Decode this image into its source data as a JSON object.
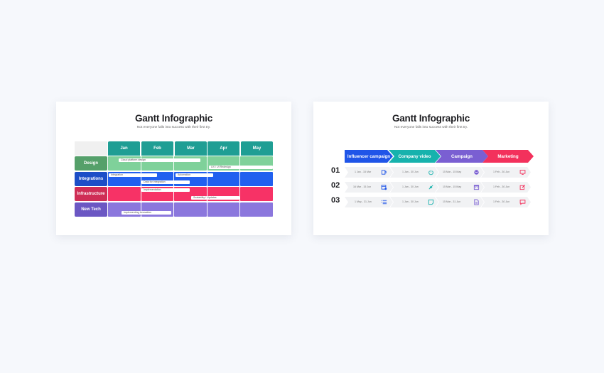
{
  "slide1": {
    "title": "Gantt Infographic",
    "subtitle": "Not everyone falls into success with their first try.",
    "months": [
      "Jan",
      "Feb",
      "Mar",
      "Apr",
      "May"
    ],
    "rows": [
      {
        "label": "Design",
        "label_color": "#55a06a",
        "band_color": "#7fd19a"
      },
      {
        "label": "Integrations",
        "label_color": "#1c4ec7",
        "band_color": "#2160ef"
      },
      {
        "label": "Infrastructure",
        "label_color": "#cf2d55",
        "band_color": "#f73266"
      },
      {
        "label": "New Tech",
        "label_color": "#6b57c3",
        "band_color": "#8b77dd"
      }
    ],
    "tasks": [
      "Cloud platform design",
      "UX / UI Redesign",
      "Integration",
      "Automation",
      "Data for integration",
      "Implementation",
      "Scalability / Updates",
      "Implementing Innovation"
    ]
  },
  "slide2": {
    "title": "Gantt Infographic",
    "subtitle": "Not everyone falls into success with their first try.",
    "phases": [
      {
        "label": "Influencer campaign",
        "color": "#1f55e8"
      },
      {
        "label": "Company video",
        "color": "#17b2ad"
      },
      {
        "label": "Campaign",
        "color": "#7a5fd2"
      },
      {
        "label": "Marketing",
        "color": "#f3315c"
      }
    ],
    "rows": [
      {
        "num": "01",
        "cells": [
          {
            "range": "1 Jan - 15 Mar",
            "icon": "mug-icon"
          },
          {
            "range": "1 Jan - 30 Jun",
            "icon": "power-icon"
          },
          {
            "range": "15 Mar - 15 May",
            "icon": "globe-icon"
          },
          {
            "range": "1 Feb - 30 Jun",
            "icon": "monitor-icon"
          }
        ]
      },
      {
        "num": "02",
        "cells": [
          {
            "range": "16 Mar - 15 Jun",
            "icon": "calendar-gear-icon"
          },
          {
            "range": "1 Jan - 30 Jun",
            "icon": "plug-icon"
          },
          {
            "range": "15 Mar - 15 May",
            "icon": "calendar-icon"
          },
          {
            "range": "1 Feb - 30 Jun",
            "icon": "edit-icon"
          }
        ]
      },
      {
        "num": "03",
        "cells": [
          {
            "range": "1 May - 31 Jun",
            "icon": "list-icon"
          },
          {
            "range": "1 Jan - 30 Jun",
            "icon": "note-icon"
          },
          {
            "range": "15 Mar - 31 Jun",
            "icon": "document-icon"
          },
          {
            "range": "1 Feb - 30 Jun",
            "icon": "chat-icon"
          }
        ]
      }
    ]
  }
}
